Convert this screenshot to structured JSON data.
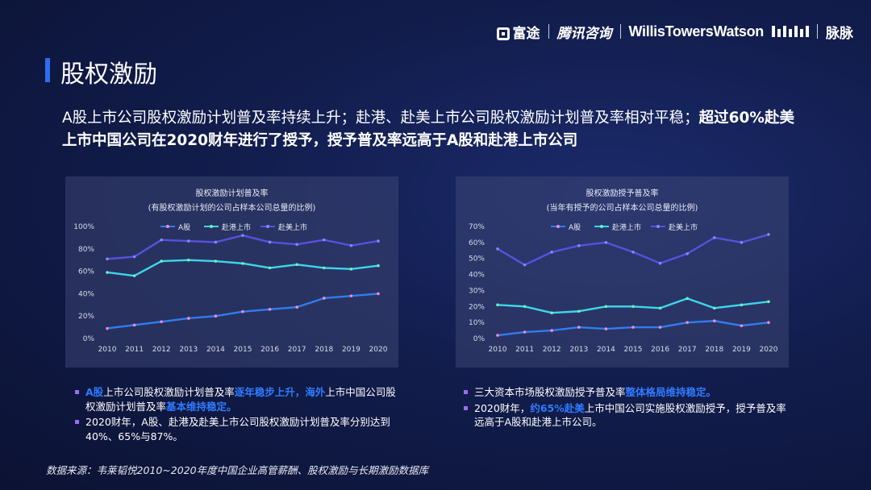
{
  "header": {
    "logo_futu": "富途",
    "logo_tencent": "腾讯咨询",
    "logo_wtw": "WillisTowersWatson",
    "logo_maimai": "脉脉"
  },
  "page_title": "股权激励",
  "headline": {
    "normal": "A股上市公司股权激励计划普及率持续上升；赴港、赴美上市公司股权激励计划普及率相对平稳；",
    "bold": "超过60%赴美上市中国公司在2020财年进行了授予，授予普及率远高于A股和赴港上市公司"
  },
  "colors": {
    "a_share": "#2f7df0",
    "hk": "#3dd6e8",
    "us": "#5a4fe0",
    "accent": "#2f6cf0",
    "bullet": "#9a6cf5"
  },
  "chart_data": [
    {
      "type": "line",
      "title": "股权激励计划普及率",
      "subtitle": "(有股权激励计划的公司占样本公司总量的比例)",
      "x": [
        "2010",
        "2011",
        "2012",
        "2013",
        "2014",
        "2015",
        "2016",
        "2017",
        "2018",
        "2019",
        "2020"
      ],
      "ylim": [
        0,
        100
      ],
      "yticks": [
        "0%",
        "20%",
        "40%",
        "60%",
        "80%",
        "100%"
      ],
      "series": [
        {
          "name": "A股",
          "values": [
            9,
            12,
            15,
            18,
            20,
            24,
            26,
            28,
            36,
            38,
            40
          ]
        },
        {
          "name": "赴港上市",
          "values": [
            59,
            56,
            69,
            70,
            69,
            67,
            63,
            66,
            63,
            62,
            65
          ]
        },
        {
          "name": "赴美上市",
          "values": [
            71,
            73,
            88,
            87,
            86,
            92,
            86,
            84,
            88,
            83,
            87
          ]
        }
      ]
    },
    {
      "type": "line",
      "title": "股权激励授予普及率",
      "subtitle": "(当年有授予的公司占样本公司总量的比例)",
      "x": [
        "2010",
        "2011",
        "2012",
        "2013",
        "2014",
        "2015",
        "2016",
        "2017",
        "2018",
        "2019",
        "2020"
      ],
      "ylim": [
        0,
        70
      ],
      "yticks": [
        "0%",
        "10%",
        "20%",
        "30%",
        "40%",
        "50%",
        "60%",
        "70%"
      ],
      "series": [
        {
          "name": "A股",
          "values": [
            2,
            4,
            5,
            7,
            6,
            7,
            7,
            10,
            11,
            8,
            10
          ]
        },
        {
          "name": "赴港上市",
          "values": [
            21,
            20,
            16,
            17,
            20,
            20,
            19,
            25,
            19,
            21,
            23
          ]
        },
        {
          "name": "赴美上市",
          "values": [
            56,
            46,
            54,
            58,
            60,
            54,
            47,
            53,
            63,
            60,
            65
          ]
        }
      ]
    }
  ],
  "notes_left": [
    {
      "parts": [
        {
          "t": "A股",
          "hl": true
        },
        {
          "t": "上市公司股权激励计划普及率",
          "hl": false
        },
        {
          "t": "逐年稳步上升，海外",
          "hl": true
        },
        {
          "t": "上市中国公司股权激励计划普及率",
          "hl": false
        },
        {
          "t": "基本维持稳定。",
          "hl": true
        }
      ]
    },
    {
      "parts": [
        {
          "t": "2020财年，A股、赴港及赴美上市公司股权激励计划普及率分别达到40%、65%与87%。",
          "hl": false
        }
      ]
    }
  ],
  "notes_right": [
    {
      "parts": [
        {
          "t": "三大资本市场股权激励授予普及率",
          "hl": false
        },
        {
          "t": "整体格局维持稳定。",
          "hl": true
        }
      ]
    },
    {
      "parts": [
        {
          "t": "2020财年，",
          "hl": false
        },
        {
          "t": "约65%赴美",
          "hl": true
        },
        {
          "t": "上市中国公司实施股权激励授予，授予普及率远高于A股和赴港上市公司。",
          "hl": false
        }
      ]
    }
  ],
  "source": "数据来源：韦莱韬悦2010~2020年度中国企业高管薪酬、股权激励与长期激励数据库"
}
